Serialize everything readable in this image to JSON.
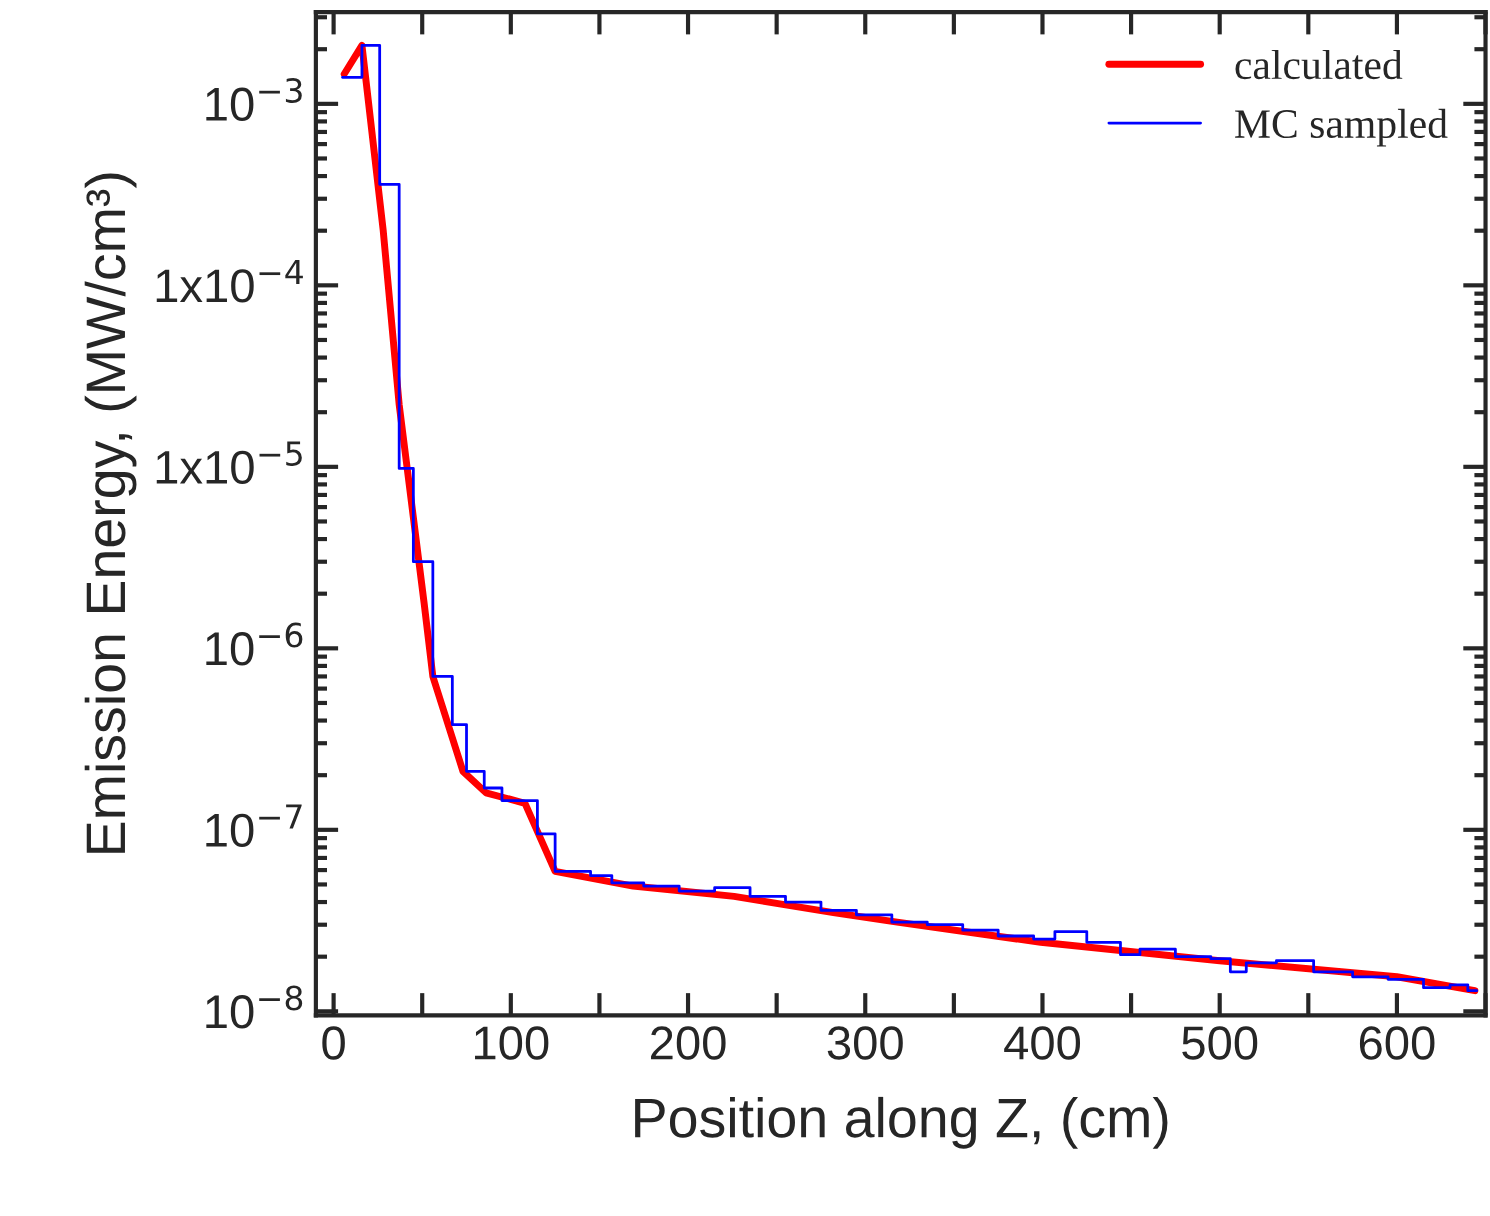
{
  "chart_data": {
    "type": "line",
    "xlabel": "Position along Z, (cm)",
    "ylabel": "Emission Energy, (MW/cm³)",
    "log": "y",
    "grid": false,
    "legend": "top right",
    "marker": "none",
    "line_style": "solid",
    "xlim": [
      -10,
      650
    ],
    "xticks": [
      0,
      {
        "value": 50,
        "label": null
      },
      100,
      {
        "value": 150,
        "label": null
      },
      200,
      {
        "value": 250,
        "label": null
      },
      300,
      {
        "value": 350,
        "label": null
      },
      400,
      {
        "value": 450,
        "label": null
      },
      500,
      {
        "value": 550,
        "label": null
      },
      600,
      {
        "value": 650,
        "label": null
      }
    ],
    "ylim": [
      9.5e-09,
      0.0032
    ],
    "yticks": [
      {
        "value": 0.001,
        "label": "10$^{−3}$"
      },
      {
        "value": 0.0001,
        "label": "1x10$^{−4}$"
      },
      {
        "value": 1e-05,
        "label": "1x10$^{−5}$"
      },
      {
        "value": 1e-06,
        "label": "10$^{−6}$"
      },
      {
        "value": 1e-07,
        "label": "10$^{−7}$"
      },
      {
        "value": 1e-08,
        "label": "10$^{−8}$"
      }
    ],
    "series": [
      {
        "name": "calculated",
        "color": "#ff0000",
        "x": [
          6,
          16,
          28,
          37,
          51,
          56,
          73,
          86,
          108,
          125,
          169,
          226,
          282,
          318,
          399,
          500,
          600,
          644
        ],
        "values": [
          0.00146,
          0.0021,
          0.0002,
          2.2e-05,
          1.8e-06,
          7e-07,
          2.1e-07,
          1.6e-07,
          1.4e-07,
          5.9e-08,
          4.9e-08,
          4.3e-08,
          3.5e-08,
          3.1e-08,
          2.4e-08,
          1.9e-08,
          1.55e-08,
          1.3e-08
        ]
      },
      {
        "name": "MC sampled",
        "type": "step",
        "color": "#0000ff",
        "x": [
          5,
          16,
          26,
          37,
          45,
          56,
          67,
          75,
          85,
          95,
          115,
          125,
          145,
          157,
          175,
          195,
          215,
          235,
          255,
          275,
          295,
          315,
          335,
          355,
          375,
          395,
          407,
          425,
          444,
          455,
          475,
          495,
          506,
          515,
          532,
          553,
          575,
          595,
          615,
          630,
          640,
          645
        ],
        "values": [
          0.0014,
          0.0021,
          0.00036,
          9.8e-06,
          3e-06,
          7e-07,
          3.8e-07,
          2.1e-07,
          1.7e-07,
          1.45e-07,
          9.5e-08,
          5.9e-08,
          5.6e-08,
          5.1e-08,
          4.9e-08,
          4.6e-08,
          4.8e-08,
          4.3e-08,
          4e-08,
          3.6e-08,
          3.4e-08,
          3.1e-08,
          3e-08,
          2.8e-08,
          2.6e-08,
          2.5e-08,
          2.75e-08,
          2.4e-08,
          2.05e-08,
          2.2e-08,
          2e-08,
          1.95e-08,
          1.65e-08,
          1.85e-08,
          1.9e-08,
          1.65e-08,
          1.55e-08,
          1.5e-08,
          1.35e-08,
          1.4e-08,
          1.3e-08,
          1.3e-08
        ]
      }
    ]
  }
}
